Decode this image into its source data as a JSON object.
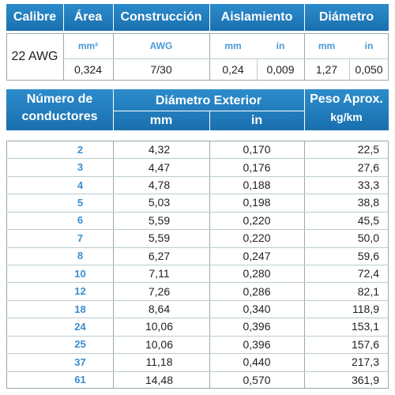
{
  "spec_header": [
    "Calibre",
    "Área",
    "Construcción",
    "Aislamiento",
    "Diámetro"
  ],
  "spec": {
    "calibre": "22 AWG",
    "units": [
      "mm²",
      "AWG",
      "mm",
      "in",
      "mm",
      "in"
    ],
    "values": [
      "0,324",
      "7/30",
      "0,24",
      "0,009",
      "1,27",
      "0,050"
    ]
  },
  "table": {
    "conductors_header": [
      "Número de",
      "conductores"
    ],
    "diameter_header": "Diámetro Exterior",
    "diameter_units": [
      "mm",
      "in"
    ],
    "weight_header": [
      "Peso Aprox.",
      "kg/km"
    ],
    "rows": [
      [
        "2",
        "4,32",
        "0,170",
        "22,5"
      ],
      [
        "3",
        "4,47",
        "0,176",
        "27,6"
      ],
      [
        "4",
        "4,78",
        "0,188",
        "33,3"
      ],
      [
        "5",
        "5,03",
        "0,198",
        "38,8"
      ],
      [
        "6",
        "5,59",
        "0,220",
        "45,5"
      ],
      [
        "7",
        "5,59",
        "0,220",
        "50,0"
      ],
      [
        "8",
        "6,27",
        "0,247",
        "59,6"
      ],
      [
        "10",
        "7,11",
        "0,280",
        "72,4"
      ],
      [
        "12",
        "7,26",
        "0,286",
        "82,1"
      ],
      [
        "18",
        "8,64",
        "0,340",
        "118,9"
      ],
      [
        "24",
        "10,06",
        "0,396",
        "153,1"
      ],
      [
        "25",
        "10,06",
        "0,396",
        "157,6"
      ],
      [
        "37",
        "11,18",
        "0,440",
        "217,3"
      ],
      [
        "61",
        "14,48",
        "0,570",
        "361,9"
      ]
    ]
  }
}
